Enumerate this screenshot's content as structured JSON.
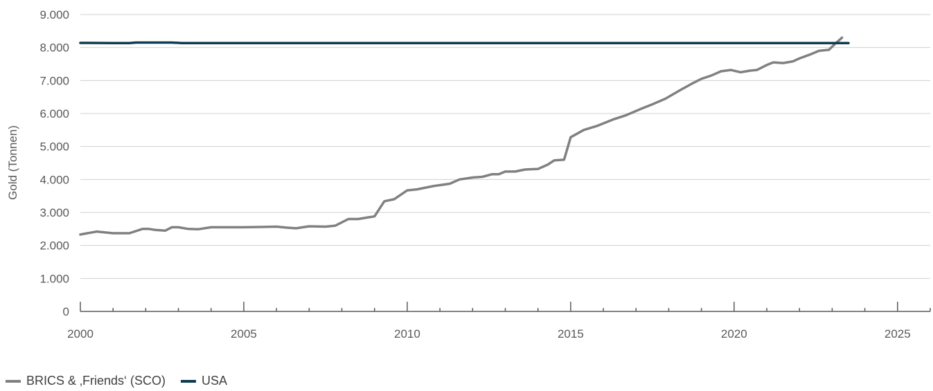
{
  "chart_data": {
    "type": "line",
    "ylabel": "Gold (Tonnen)",
    "xlabel": "",
    "title": "",
    "xlim": [
      2000,
      2026
    ],
    "ylim": [
      0,
      9000
    ],
    "x_ticks": [
      2000,
      2005,
      2010,
      2015,
      2020,
      2025
    ],
    "x_tick_labels": [
      "2000",
      "2005",
      "2010",
      "2015",
      "2020",
      "2025"
    ],
    "y_ticks": [
      0,
      1000,
      2000,
      3000,
      4000,
      5000,
      6000,
      7000,
      8000,
      9000
    ],
    "y_tick_labels": [
      "0",
      "1.000",
      "2.000",
      "3.000",
      "4.000",
      "5.000",
      "6.000",
      "7.000",
      "8.000",
      "9.000"
    ],
    "grid": "horizontal",
    "legend_position": "bottom-left",
    "series": [
      {
        "name": "BRICS & ‚Friends‘ (SCO)",
        "color": "#808080",
        "x": [
          2000.0,
          2000.5,
          2001.0,
          2001.5,
          2001.9,
          2002.1,
          2002.3,
          2002.6,
          2002.8,
          2003.0,
          2003.3,
          2003.6,
          2004.0,
          2005.0,
          2005.5,
          2006.0,
          2006.3,
          2006.6,
          2007.0,
          2007.5,
          2007.8,
          2008.2,
          2008.5,
          2008.8,
          2009.0,
          2009.3,
          2009.6,
          2010.0,
          2010.3,
          2010.8,
          2011.3,
          2011.6,
          2012.0,
          2012.3,
          2012.6,
          2012.8,
          2013.0,
          2013.3,
          2013.6,
          2014.0,
          2014.3,
          2014.5,
          2014.8,
          2015.0,
          2015.4,
          2015.8,
          2016.3,
          2016.7,
          2017.1,
          2017.5,
          2017.9,
          2018.3,
          2018.7,
          2019.0,
          2019.3,
          2019.6,
          2019.9,
          2020.2,
          2020.5,
          2020.7,
          2021.0,
          2021.2,
          2021.5,
          2021.8,
          2022.0,
          2022.3,
          2022.6,
          2022.9,
          2023.1,
          2023.3
        ],
        "values": [
          2330,
          2420,
          2370,
          2370,
          2500,
          2500,
          2470,
          2450,
          2550,
          2550,
          2500,
          2490,
          2550,
          2550,
          2560,
          2570,
          2540,
          2520,
          2580,
          2570,
          2600,
          2800,
          2800,
          2850,
          2880,
          3340,
          3400,
          3670,
          3700,
          3800,
          3870,
          4000,
          4060,
          4080,
          4160,
          4160,
          4240,
          4240,
          4300,
          4320,
          4450,
          4580,
          4600,
          5280,
          5500,
          5620,
          5820,
          5950,
          6120,
          6280,
          6450,
          6680,
          6900,
          7050,
          7150,
          7280,
          7320,
          7250,
          7300,
          7320,
          7470,
          7550,
          7530,
          7580,
          7670,
          7780,
          7900,
          7930,
          8120,
          8300
        ]
      },
      {
        "name": "USA",
        "color": "#0d3b4f",
        "x": [
          2000.0,
          2001.0,
          2001.5,
          2001.7,
          2002.0,
          2002.8,
          2003.1,
          2004.0,
          2008.0,
          2012.0,
          2016.0,
          2020.0,
          2023.5
        ],
        "values": [
          8140,
          8135,
          8135,
          8150,
          8150,
          8150,
          8135,
          8133,
          8133,
          8133,
          8133,
          8133,
          8133
        ]
      }
    ]
  }
}
